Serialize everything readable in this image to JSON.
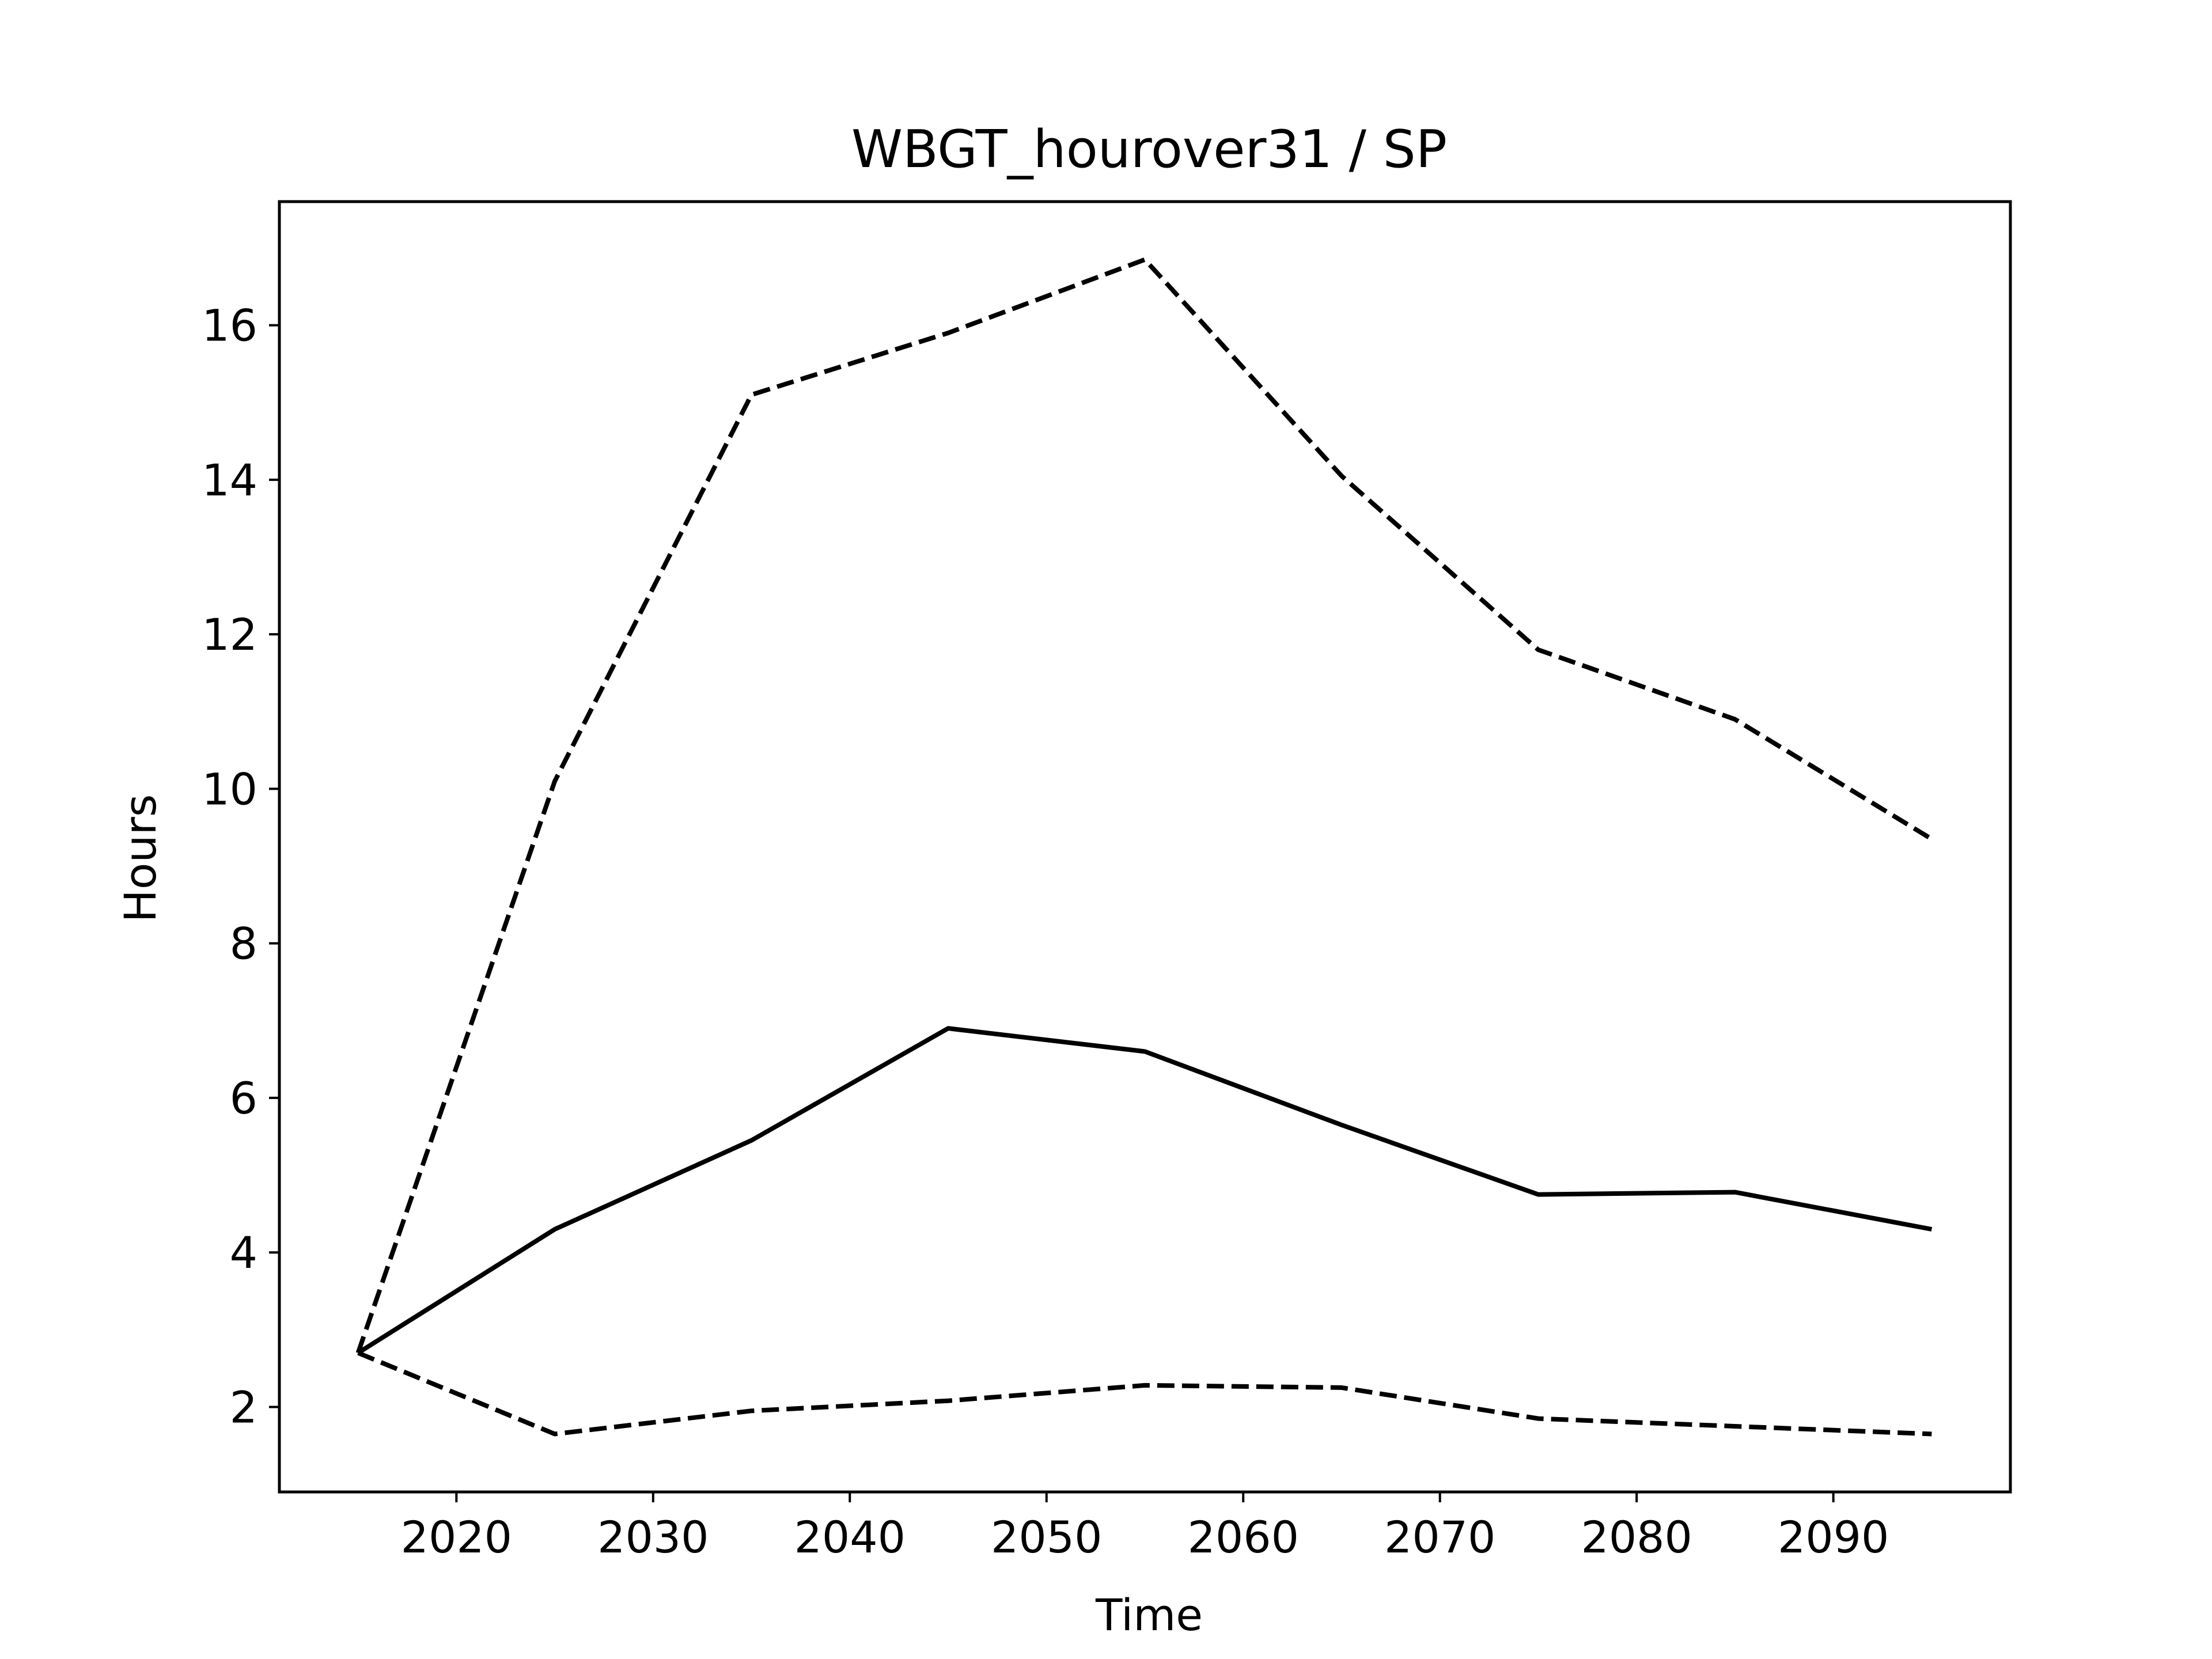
{
  "chart_data": {
    "type": "line",
    "title": "WBGT_hourover31 / SP",
    "xlabel": "Time",
    "ylabel": "Hours",
    "xlim": [
      2011,
      2099
    ],
    "ylim": [
      0.9,
      17.6
    ],
    "x_ticks": [
      2020,
      2030,
      2040,
      2050,
      2060,
      2070,
      2080,
      2090
    ],
    "y_ticks": [
      2,
      4,
      6,
      8,
      10,
      12,
      14,
      16
    ],
    "grid": false,
    "legend": "none",
    "x": [
      2015,
      2025,
      2035,
      2045,
      2055,
      2065,
      2075,
      2085,
      2095
    ],
    "series": [
      {
        "style": "solid",
        "color": "#000000",
        "values": [
          2.7,
          4.3,
          5.45,
          6.9,
          6.6,
          5.65,
          4.75,
          4.78,
          4.3
        ]
      },
      {
        "style": "dashed",
        "color": "#000000",
        "values": [
          2.7,
          10.1,
          15.1,
          15.9,
          16.85,
          14.05,
          11.8,
          10.9,
          9.35
        ]
      },
      {
        "style": "dashed",
        "color": "#000000",
        "values": [
          2.7,
          1.65,
          1.95,
          2.08,
          2.28,
          2.25,
          1.85,
          1.75,
          1.65
        ]
      }
    ]
  }
}
